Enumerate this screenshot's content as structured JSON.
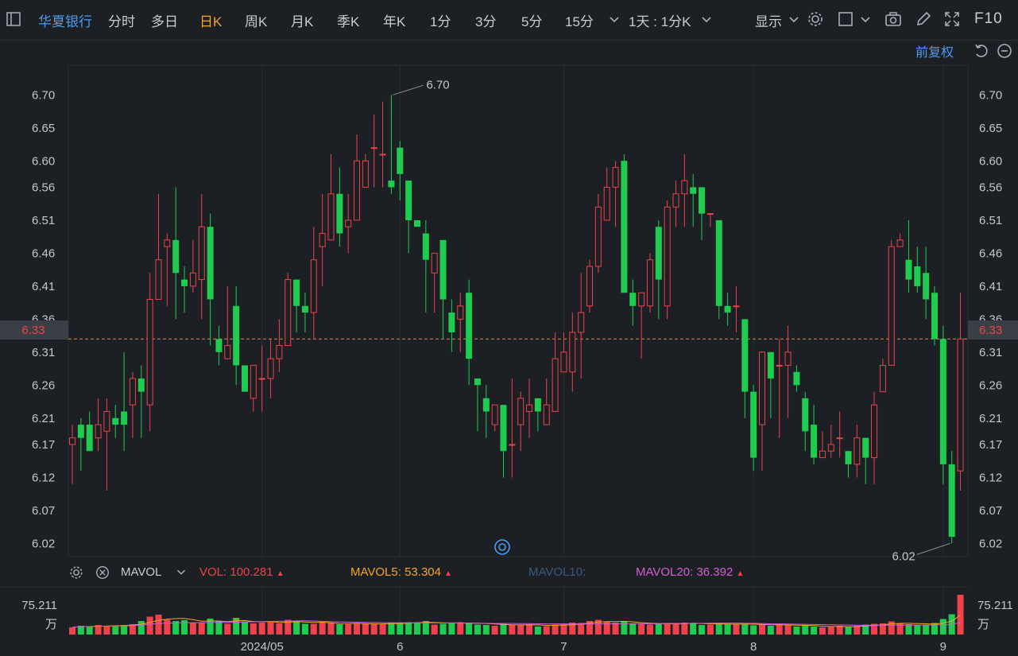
{
  "toolbar": {
    "stock_name": "华夏银行",
    "periods": [
      "分时",
      "多日",
      "日K",
      "周K",
      "月K",
      "季K",
      "年K",
      "1分",
      "3分",
      "5分",
      "15分"
    ],
    "active_period": "日K",
    "interval_select": "1天 : 1分K",
    "display_label": "显示",
    "f10_label": "F10"
  },
  "subbar": {
    "adjust_label": "前复权"
  },
  "colors": {
    "up": "#f0424b",
    "down": "#1fcc4f",
    "current_price": "#f0424b",
    "mavol5": "#f5a623",
    "mavol10": "#3a5a7a",
    "mavol20": "#d65dd6",
    "active": "#f5a623",
    "accent": "#4a9df0"
  },
  "price_axis": {
    "ticks": [
      "6.70",
      "6.65",
      "6.60",
      "6.56",
      "6.51",
      "6.46",
      "6.41",
      "6.36",
      "6.31",
      "6.26",
      "6.21",
      "6.17",
      "6.12",
      "6.07",
      "6.02"
    ],
    "current": "6.33",
    "max_label": "6.70",
    "min_label": "6.02"
  },
  "volume_panel": {
    "indicator": "MAVOL",
    "vol_label": "VOL:",
    "vol_value": "100.281",
    "mavol5_label": "MAVOL5:",
    "mavol5_value": "53.304",
    "mavol10_label": "MAVOL10:",
    "mavol10_value": "",
    "mavol20_label": "MAVOL20:",
    "mavol20_value": "36.392",
    "axis_value": "75.211",
    "axis_unit": "万"
  },
  "chart_data": {
    "type": "candlestick",
    "title": "",
    "xlabel": "",
    "ylabel": "",
    "ylim": [
      6.0,
      6.745
    ],
    "x_labels": [
      {
        "label": "2024/05",
        "index": 22
      },
      {
        "label": "6",
        "index": 38
      },
      {
        "label": "7",
        "index": 57
      },
      {
        "label": "8",
        "index": 79
      },
      {
        "label": "9",
        "index": 101
      }
    ],
    "candles": [
      [
        6.17,
        6.18,
        6.2,
        6.11
      ],
      [
        6.2,
        6.18,
        6.21,
        6.13
      ],
      [
        6.2,
        6.16,
        6.22,
        6.16
      ],
      [
        6.18,
        6.2,
        6.24,
        6.16
      ],
      [
        6.19,
        6.22,
        6.24,
        6.1
      ],
      [
        6.21,
        6.2,
        6.23,
        6.18
      ],
      [
        6.22,
        6.2,
        6.31,
        6.16
      ],
      [
        6.23,
        6.27,
        6.28,
        6.18
      ],
      [
        6.27,
        6.25,
        6.29,
        6.18
      ],
      [
        6.23,
        6.39,
        6.43,
        6.19
      ],
      [
        6.39,
        6.45,
        6.55,
        6.39
      ],
      [
        6.47,
        6.48,
        6.49,
        6.38
      ],
      [
        6.48,
        6.43,
        6.56,
        6.36
      ],
      [
        6.42,
        6.41,
        6.44,
        6.37
      ],
      [
        6.41,
        6.43,
        6.48,
        6.4
      ],
      [
        6.42,
        6.5,
        6.55,
        6.36
      ],
      [
        6.5,
        6.39,
        6.52,
        6.32
      ],
      [
        6.33,
        6.31,
        6.35,
        6.29
      ],
      [
        6.3,
        6.32,
        6.41,
        6.3
      ],
      [
        6.38,
        6.29,
        6.41,
        6.26
      ],
      [
        6.29,
        6.25,
        6.27,
        6.25
      ],
      [
        6.24,
        6.29,
        6.29,
        6.22
      ],
      [
        6.27,
        6.27,
        6.32,
        6.22
      ],
      [
        6.27,
        6.3,
        6.33,
        6.24
      ],
      [
        6.3,
        6.32,
        6.36,
        6.28
      ],
      [
        6.32,
        6.42,
        6.43,
        6.32
      ],
      [
        6.42,
        6.38,
        6.41,
        6.34
      ],
      [
        6.38,
        6.37,
        6.4,
        6.34
      ],
      [
        6.37,
        6.45,
        6.5,
        6.33
      ],
      [
        6.47,
        6.49,
        6.55,
        6.41
      ],
      [
        6.48,
        6.55,
        6.61,
        6.48
      ],
      [
        6.55,
        6.49,
        6.59,
        6.47
      ],
      [
        6.5,
        6.51,
        6.55,
        6.46
      ],
      [
        6.51,
        6.6,
        6.64,
        6.52
      ],
      [
        6.56,
        6.6,
        6.61,
        6.57
      ],
      [
        6.62,
        6.62,
        6.67,
        6.56
      ],
      [
        6.61,
        6.61,
        6.69,
        6.56
      ],
      [
        6.57,
        6.56,
        6.7,
        6.55
      ],
      [
        6.62,
        6.58,
        6.63,
        6.54
      ],
      [
        6.57,
        6.51,
        6.57,
        6.46
      ],
      [
        6.51,
        6.5,
        6.51,
        6.5
      ],
      [
        6.49,
        6.45,
        6.51,
        6.37
      ],
      [
        6.43,
        6.46,
        6.46,
        6.37
      ],
      [
        6.48,
        6.39,
        6.48,
        6.33
      ],
      [
        6.37,
        6.34,
        6.39,
        6.31
      ],
      [
        6.36,
        6.38,
        6.4,
        6.31
      ],
      [
        6.4,
        6.3,
        6.42,
        6.26
      ],
      [
        6.27,
        6.26,
        6.27,
        6.19
      ],
      [
        6.24,
        6.22,
        6.26,
        6.18
      ],
      [
        6.2,
        6.23,
        6.23,
        6.19
      ],
      [
        6.23,
        6.16,
        6.23,
        6.12
      ],
      [
        6.17,
        6.17,
        6.27,
        6.12
      ],
      [
        6.2,
        6.24,
        6.25,
        6.16
      ],
      [
        6.22,
        6.23,
        6.27,
        6.18
      ],
      [
        6.24,
        6.22,
        6.24,
        6.19
      ],
      [
        6.2,
        6.23,
        6.27,
        6.2
      ],
      [
        6.22,
        6.3,
        6.34,
        6.23
      ],
      [
        6.28,
        6.31,
        6.34,
        6.28
      ],
      [
        6.28,
        6.34,
        6.37,
        6.25
      ],
      [
        6.34,
        6.37,
        6.43,
        6.27
      ],
      [
        6.38,
        6.44,
        6.45,
        6.37
      ],
      [
        6.44,
        6.53,
        6.55,
        6.43
      ],
      [
        6.51,
        6.56,
        6.59,
        6.51
      ],
      [
        6.56,
        6.59,
        6.6,
        6.5
      ],
      [
        6.6,
        6.4,
        6.61,
        6.42
      ],
      [
        6.4,
        6.38,
        6.42,
        6.35
      ],
      [
        6.38,
        6.4,
        6.39,
        6.3
      ],
      [
        6.38,
        6.45,
        6.46,
        6.37
      ],
      [
        6.5,
        6.42,
        6.51,
        6.36
      ],
      [
        6.38,
        6.53,
        6.54,
        6.36
      ],
      [
        6.53,
        6.55,
        6.57,
        6.5
      ],
      [
        6.55,
        6.57,
        6.61,
        6.5
      ],
      [
        6.56,
        6.55,
        6.58,
        6.5
      ],
      [
        6.56,
        6.52,
        6.56,
        6.48
      ],
      [
        6.52,
        6.52,
        6.52,
        6.5
      ],
      [
        6.51,
        6.38,
        6.51,
        6.36
      ],
      [
        6.38,
        6.37,
        6.4,
        6.35
      ],
      [
        6.38,
        6.38,
        6.41,
        6.34
      ],
      [
        6.36,
        6.25,
        6.36,
        6.21
      ],
      [
        6.25,
        6.15,
        6.26,
        6.13
      ],
      [
        6.2,
        6.31,
        6.31,
        6.13
      ],
      [
        6.31,
        6.27,
        6.31,
        6.21
      ],
      [
        6.29,
        6.29,
        6.33,
        6.18
      ],
      [
        6.29,
        6.31,
        6.35,
        6.21
      ],
      [
        6.28,
        6.26,
        6.29,
        6.25
      ],
      [
        6.24,
        6.19,
        6.25,
        6.16
      ],
      [
        6.2,
        6.15,
        6.23,
        6.14
      ],
      [
        6.15,
        6.16,
        6.19,
        6.15
      ],
      [
        6.16,
        6.17,
        6.2,
        6.15
      ],
      [
        6.18,
        6.18,
        6.22,
        6.15
      ],
      [
        6.16,
        6.14,
        6.16,
        6.12
      ],
      [
        6.14,
        6.18,
        6.2,
        6.12
      ],
      [
        6.18,
        6.15,
        6.18,
        6.11
      ],
      [
        6.15,
        6.23,
        6.25,
        6.11
      ],
      [
        6.25,
        6.29,
        6.3,
        6.28
      ],
      [
        6.29,
        6.47,
        6.48,
        6.33
      ],
      [
        6.47,
        6.48,
        6.49,
        6.47
      ],
      [
        6.45,
        6.42,
        6.51,
        6.4
      ],
      [
        6.44,
        6.41,
        6.47,
        6.4
      ],
      [
        6.43,
        6.39,
        6.47,
        6.36
      ],
      [
        6.4,
        6.33,
        6.41,
        6.32
      ],
      [
        6.33,
        6.14,
        6.35,
        6.11
      ],
      [
        6.14,
        6.03,
        6.16,
        6.02
      ],
      [
        6.13,
        6.33,
        6.4,
        6.1
      ]
    ],
    "volumes": [
      0.18,
      0.22,
      0.2,
      0.24,
      0.22,
      0.23,
      0.24,
      0.26,
      0.34,
      0.45,
      0.5,
      0.37,
      0.34,
      0.36,
      0.3,
      0.3,
      0.4,
      0.34,
      0.27,
      0.42,
      0.33,
      0.28,
      0.3,
      0.32,
      0.28,
      0.37,
      0.34,
      0.27,
      0.27,
      0.3,
      0.29,
      0.26,
      0.26,
      0.29,
      0.27,
      0.26,
      0.26,
      0.29,
      0.3,
      0.31,
      0.31,
      0.34,
      0.25,
      0.27,
      0.29,
      0.31,
      0.3,
      0.25,
      0.24,
      0.22,
      0.27,
      0.24,
      0.24,
      0.26,
      0.2,
      0.21,
      0.25,
      0.27,
      0.3,
      0.29,
      0.34,
      0.37,
      0.32,
      0.3,
      0.33,
      0.28,
      0.26,
      0.25,
      0.27,
      0.29,
      0.28,
      0.3,
      0.28,
      0.24,
      0.25,
      0.28,
      0.27,
      0.26,
      0.26,
      0.23,
      0.25,
      0.22,
      0.27,
      0.24,
      0.2,
      0.23,
      0.2,
      0.18,
      0.19,
      0.22,
      0.19,
      0.22,
      0.25,
      0.27,
      0.28,
      0.33,
      0.27,
      0.26,
      0.24,
      0.25,
      0.29,
      0.39,
      0.51,
      1.0
    ],
    "volume_ref": 75.211
  }
}
